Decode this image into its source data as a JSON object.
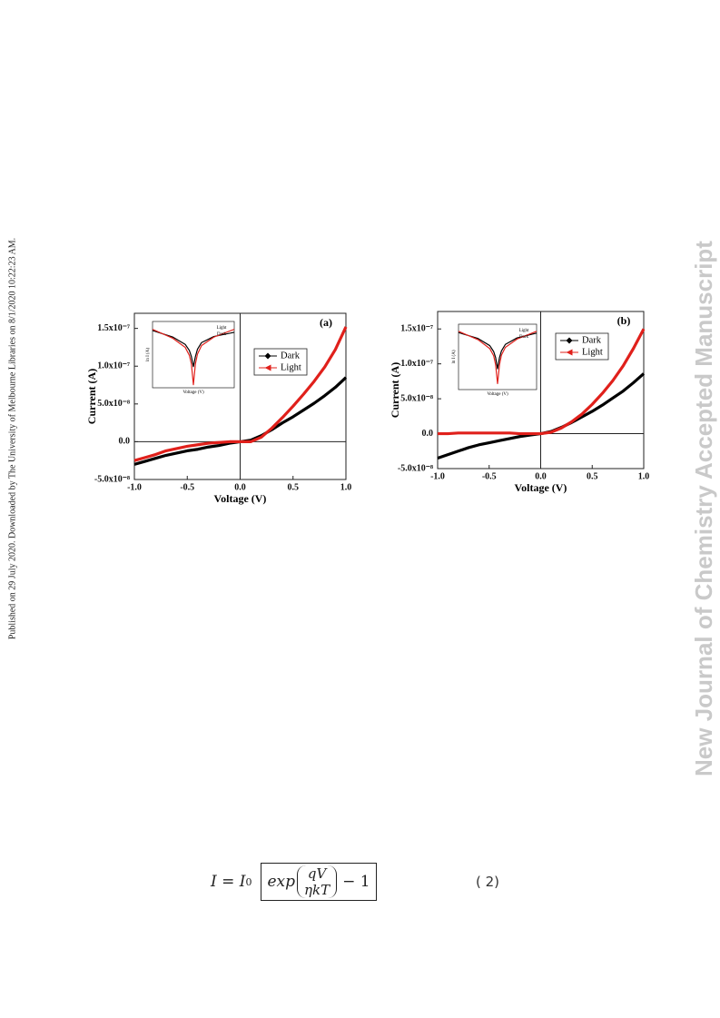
{
  "side_note": "Published on 29 July 2020. Downloaded by The University of Melbourne Libraries on 8/1/2020 10:22:23 AM.",
  "watermark": "New Journal of Chemistry Accepted Manuscript",
  "equation": {
    "lhs": "I = I",
    "subscript": "0",
    "function": "exp",
    "numerator": "qV",
    "denominator": "ηkT",
    "tail": "− 1",
    "number": "( 2)"
  },
  "chart_data": [
    {
      "type": "line",
      "title": "(a)",
      "xlabel": "Voltage (V)",
      "ylabel": "Current (A)",
      "x": [
        -1,
        -0.9,
        -0.8,
        -0.7,
        -0.6,
        -0.5,
        -0.4,
        -0.3,
        -0.2,
        -0.1,
        0,
        0.1,
        0.2,
        0.3,
        0.4,
        0.5,
        0.6,
        0.7,
        0.8,
        0.9,
        1
      ],
      "series": [
        {
          "name": "Dark",
          "color": "#000000",
          "marker": "diamond",
          "values": [
            -3e-08,
            -2.6e-08,
            -2.2e-08,
            -1.8e-08,
            -1.5e-08,
            -1.2e-08,
            -1e-08,
            -7e-09,
            -5e-09,
            -2e-09,
            0,
            2e-09,
            8e-09,
            1.6e-08,
            2.5e-08,
            3.3e-08,
            4.2e-08,
            5.1e-08,
            6.1e-08,
            7.2e-08,
            8.5e-08
          ]
        },
        {
          "name": "Light",
          "color": "#e0201b",
          "marker": "triangle",
          "values": [
            -2.5e-08,
            -2.1e-08,
            -1.7e-08,
            -1.2e-08,
            -9e-09,
            -6e-09,
            -4e-09,
            -2e-09,
            -1e-09,
            0,
            0,
            0,
            6e-09,
            1.8e-08,
            3.2e-08,
            4.7e-08,
            6.3e-08,
            8e-08,
            9.9e-08,
            1.22e-07,
            1.52e-07
          ]
        }
      ],
      "xlim": [
        -1,
        1
      ],
      "ylim": [
        -5e-08,
        1.7e-07
      ],
      "xticks": [
        {
          "value": -1,
          "label": "-1.0"
        },
        {
          "value": -0.5,
          "label": "-0.5"
        },
        {
          "value": 0,
          "label": "0.0"
        },
        {
          "value": 0.5,
          "label": "0.5"
        },
        {
          "value": 1,
          "label": "1.0"
        }
      ],
      "yticks": [
        {
          "value": -5e-08,
          "label": "-5.0x10⁻⁸"
        },
        {
          "value": 0,
          "label": "0.0"
        },
        {
          "value": 5e-08,
          "label": "5.0x10⁻⁸"
        },
        {
          "value": 1e-07,
          "label": "1.0x10⁻⁷"
        },
        {
          "value": 1.5e-07,
          "label": "1.5x10⁻⁷"
        }
      ],
      "legend": "upper right",
      "inset": {
        "xlabel": "Voltage (V)",
        "ylabel": "ln I (A)",
        "annotations": [
          "Light",
          "Dark"
        ],
        "x": [
          -1,
          -0.5,
          -0.2,
          -0.1,
          -0.05,
          0,
          0.05,
          0.1,
          0.2,
          0.5,
          1
        ],
        "xlim": [
          -1,
          1
        ],
        "ylim": [
          -25,
          -14
        ],
        "series": [
          {
            "name": "Dark",
            "color": "#000000",
            "values": [
              -15.5,
              -16.6,
              -17.8,
              -18.8,
              -19.8,
              -21.5,
              -19.8,
              -18.6,
              -17.5,
              -16.5,
              -15.8
            ]
          },
          {
            "name": "Light",
            "color": "#e0201b",
            "values": [
              -15.3,
              -16.8,
              -18.3,
              -19.6,
              -21,
              -24.5,
              -21,
              -19.4,
              -18,
              -16.6,
              -15.3
            ]
          }
        ]
      }
    },
    {
      "type": "line",
      "title": "(b)",
      "xlabel": "Voltage (V)",
      "ylabel": "Current (A)",
      "x": [
        -1,
        -0.9,
        -0.8,
        -0.7,
        -0.6,
        -0.5,
        -0.4,
        -0.3,
        -0.2,
        -0.1,
        0,
        0.1,
        0.2,
        0.3,
        0.4,
        0.5,
        0.6,
        0.7,
        0.8,
        0.9,
        1
      ],
      "series": [
        {
          "name": "Dark",
          "color": "#000000",
          "marker": "diamond",
          "values": [
            -3.5e-08,
            -3e-08,
            -2.5e-08,
            -2e-08,
            -1.6e-08,
            -1.3e-08,
            -1e-08,
            -7e-09,
            -4e-09,
            -2e-09,
            0,
            3e-09,
            9e-09,
            1.6e-08,
            2.4e-08,
            3.2e-08,
            4.1e-08,
            5.1e-08,
            6.1e-08,
            7.3e-08,
            8.6e-08
          ]
        },
        {
          "name": "Light",
          "color": "#e0201b",
          "marker": "triangle",
          "values": [
            0,
            0,
            1e-09,
            1e-09,
            1e-09,
            1e-09,
            1e-09,
            1e-09,
            0,
            0,
            0,
            2e-09,
            8e-09,
            1.7e-08,
            2.8e-08,
            4.2e-08,
            5.8e-08,
            7.6e-08,
            9.7e-08,
            1.22e-07,
            1.5e-07
          ]
        }
      ],
      "xlim": [
        -1,
        1
      ],
      "ylim": [
        -5e-08,
        1.75e-07
      ],
      "xticks": [
        {
          "value": -1,
          "label": "-1.0"
        },
        {
          "value": -0.5,
          "label": "-0.5"
        },
        {
          "value": 0,
          "label": "0.0"
        },
        {
          "value": 0.5,
          "label": "0.5"
        },
        {
          "value": 1,
          "label": "1.0"
        }
      ],
      "yticks": [
        {
          "value": -5e-08,
          "label": "-5.0x10⁻⁸"
        },
        {
          "value": 0,
          "label": "0.0"
        },
        {
          "value": 5e-08,
          "label": "5.0x10⁻⁸"
        },
        {
          "value": 1e-07,
          "label": "1.0x10⁻⁷"
        },
        {
          "value": 1.5e-07,
          "label": "1.5x10⁻⁷"
        }
      ],
      "legend": "upper right",
      "inset": {
        "xlabel": "Voltage (V)",
        "ylabel": "ln I (A)",
        "annotations": [
          "Light",
          "Dark"
        ],
        "x": [
          -1,
          -0.5,
          -0.2,
          -0.1,
          -0.05,
          0,
          0.05,
          0.1,
          0.2,
          0.5,
          1
        ],
        "xlim": [
          -1,
          1
        ],
        "ylim": [
          -25,
          -14
        ],
        "series": [
          {
            "name": "Dark",
            "color": "#000000",
            "values": [
              -15.4,
              -16.4,
              -17.6,
              -18.6,
              -19.6,
              -21.5,
              -19.6,
              -18.5,
              -17.4,
              -16.3,
              -15.5
            ]
          },
          {
            "name": "Light",
            "color": "#e0201b",
            "values": [
              -15.2,
              -16.6,
              -18.1,
              -19.3,
              -20.8,
              -24,
              -20.8,
              -19.2,
              -17.9,
              -16.5,
              -15.2
            ]
          }
        ]
      }
    }
  ]
}
